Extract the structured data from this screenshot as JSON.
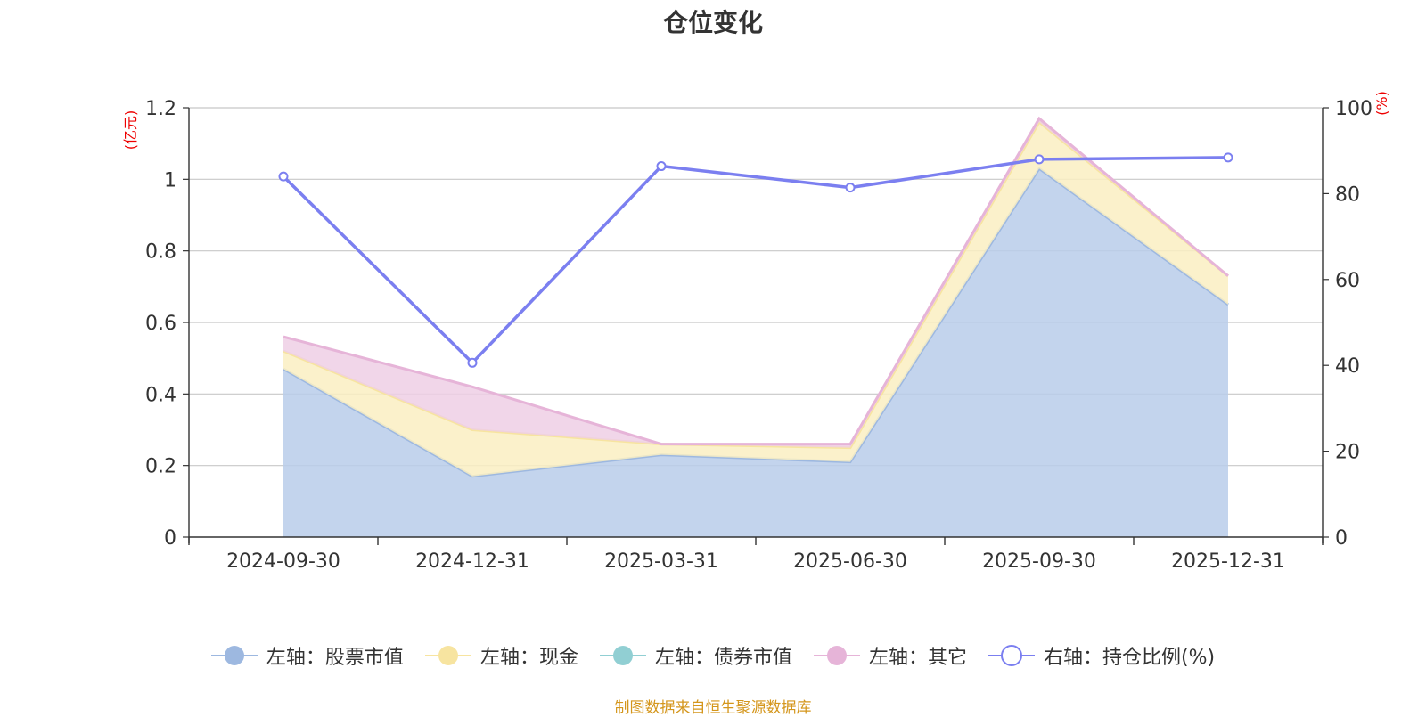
{
  "chart_data": {
    "type": "area",
    "title": "仓位变化",
    "categories": [
      "2024-09-30",
      "2024-12-31",
      "2025-03-31",
      "2025-06-30",
      "2025-09-30",
      "2025-12-31"
    ],
    "left_axis": {
      "unit": "(亿元)",
      "ylim": [
        0,
        1.2
      ],
      "ticks": [
        "0",
        "0.2",
        "0.4",
        "0.6",
        "0.8",
        "1",
        "1.2"
      ]
    },
    "right_axis": {
      "unit": "(%)",
      "ylim": [
        0,
        100
      ],
      "ticks": [
        "0",
        "20",
        "40",
        "60",
        "80",
        "100"
      ]
    },
    "series": [
      {
        "name": "左轴：股票市值",
        "axis": "left",
        "kind": "stacked-area",
        "color": "#9db8e0",
        "fill": "#b9cdea",
        "values": [
          0.47,
          0.17,
          0.23,
          0.21,
          1.03,
          0.65
        ]
      },
      {
        "name": "左轴：现金",
        "axis": "left",
        "kind": "stacked-area",
        "color": "#f7e4a0",
        "fill": "#faefc2",
        "values": [
          0.05,
          0.13,
          0.03,
          0.04,
          0.13,
          0.08
        ]
      },
      {
        "name": "左轴：债券市值",
        "axis": "left",
        "kind": "stacked-area",
        "color": "#91cfd3",
        "fill": "#bfe4e6",
        "values": [
          0,
          0,
          0,
          0,
          0,
          0
        ]
      },
      {
        "name": "左轴：其它",
        "axis": "left",
        "kind": "stacked-area",
        "color": "#e6b4d8",
        "fill": "#eecfe5",
        "values": [
          0.04,
          0.12,
          0.0,
          0.01,
          0.01,
          0.0
        ]
      },
      {
        "name": "右轴：持仓比例(%)",
        "axis": "right",
        "kind": "line",
        "color": "#7b7ff0",
        "values": [
          84.0,
          40.6,
          86.4,
          81.4,
          88.0,
          88.4
        ]
      }
    ]
  },
  "legend": [
    {
      "label": "左轴：股票市值",
      "type": "dot",
      "color": "#9db8e0"
    },
    {
      "label": "左轴：现金",
      "type": "dot",
      "color": "#f7e4a0"
    },
    {
      "label": "左轴：债券市值",
      "type": "dot",
      "color": "#91cfd3"
    },
    {
      "label": "左轴：其它",
      "type": "dot",
      "color": "#e6b4d8"
    },
    {
      "label": "右轴：持仓比例(%)",
      "type": "ring",
      "color": "#7b7ff0"
    }
  ],
  "footer": "制图数据来自恒生聚源数据库"
}
